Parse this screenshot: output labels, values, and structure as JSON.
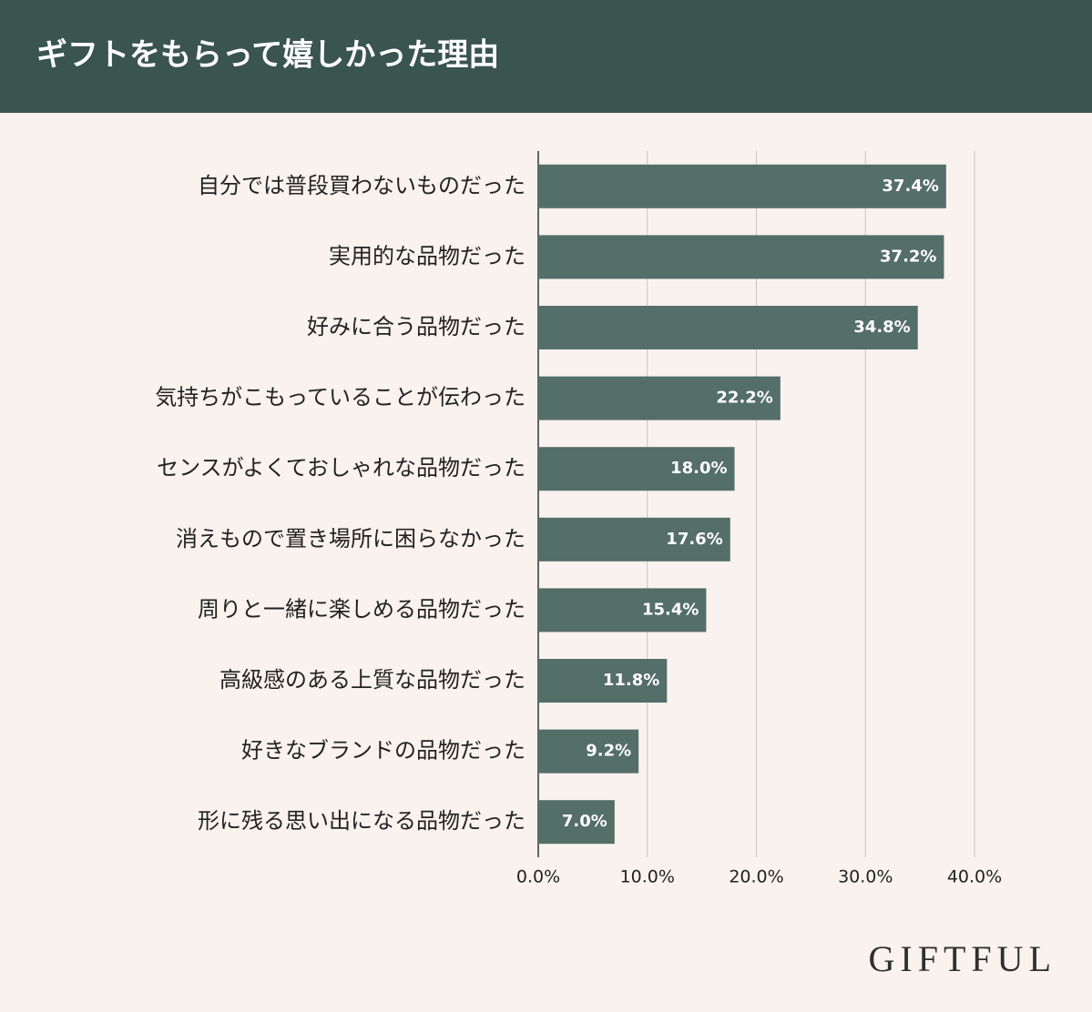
{
  "chart_data": {
    "type": "hbar",
    "title": "ギフトをもらって嬉しかった理由",
    "categories": [
      "自分では普段買わないものだった",
      "実用的な品物だった",
      "好みに合う品物だった",
      "気持ちがこもっていることが伝わった",
      "センスがよくておしゃれな品物だった",
      "消えもので置き場所に困らなかった",
      "周りと一緒に楽しめる品物だった",
      "高級感のある上質な品物だった",
      "好きなブランドの品物だった",
      "形に残る思い出になる品物だった"
    ],
    "values": [
      37.4,
      37.2,
      34.8,
      22.2,
      18.0,
      17.6,
      15.4,
      11.8,
      9.2,
      7.0
    ],
    "value_labels": [
      "37.4%",
      "37.2%",
      "34.8%",
      "22.2%",
      "18.0%",
      "17.6%",
      "15.4%",
      "11.8%",
      "9.2%",
      "7.0%"
    ],
    "color": "#546e6a",
    "xlim": [
      0,
      40
    ],
    "xticks": [
      {
        "value": 0,
        "label": "0.0%"
      },
      {
        "value": 10,
        "label": "10.0%"
      },
      {
        "value": 20,
        "label": "20.0%"
      },
      {
        "value": 30,
        "label": "30.0%"
      },
      {
        "value": 40,
        "label": "40.0%"
      }
    ],
    "grid": true
  },
  "brand": "GIFTFUL"
}
